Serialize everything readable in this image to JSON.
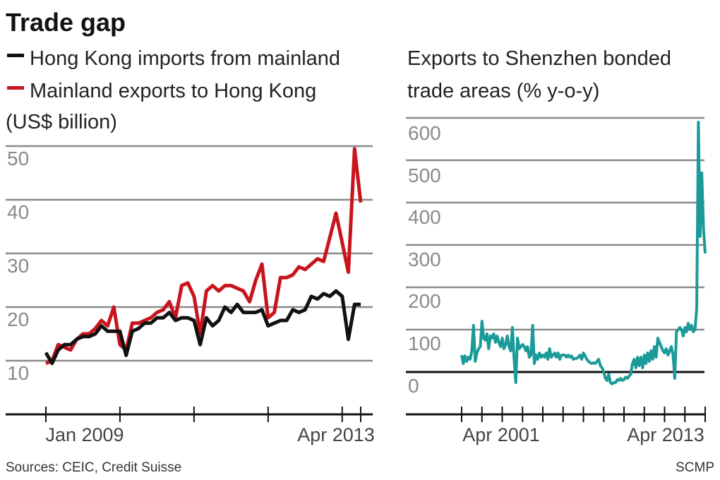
{
  "title": "Trade gap",
  "footer": {
    "source": "Sources: CEIC, Credit Suisse",
    "credit": "SCMP"
  },
  "colors": {
    "hk_imports": "#111111",
    "mainland_exports": "#c8141c",
    "shenzhen": "#1a9a98",
    "grid": "#8a8a8a"
  },
  "chart_data": [
    {
      "type": "line",
      "title": "",
      "legend": [
        "Hong Kong imports from mainland",
        "Mainland exports to Hong Kong"
      ],
      "unit_label": "(US$ billion)",
      "legend_placement": "top-left",
      "x_start": "2009-01",
      "x_end": "2013-04",
      "x_frequency": "monthly",
      "x_tick_labels": [
        "Jan 2009",
        "Apr 2013"
      ],
      "y_ticks": [
        "10",
        "20",
        "30",
        "40",
        "50"
      ],
      "ylim": [
        0,
        50
      ],
      "grid": true,
      "series": [
        {
          "name": "Hong Kong imports from mainland",
          "color": "#111111",
          "values": [
            11.5,
            9.5,
            12,
            13,
            13,
            14,
            14.5,
            14.5,
            15,
            16.5,
            15.5,
            15.5,
            15.5,
            11,
            15.5,
            16,
            17,
            17,
            18,
            18,
            19,
            17.5,
            18,
            18,
            17.5,
            13,
            18,
            16.5,
            17.5,
            20,
            19,
            20.5,
            19,
            19,
            19,
            19.5,
            16.5,
            17,
            17.5,
            17.5,
            19.5,
            19,
            19.5,
            22,
            21.5,
            22.5,
            22,
            23,
            22,
            14,
            20.5,
            20.5
          ]
        },
        {
          "name": "Mainland exports to Hong Kong",
          "color": "#c8141c",
          "values": [
            9.5,
            10,
            13,
            12.5,
            12,
            14,
            15,
            15,
            16,
            17.5,
            16.5,
            20,
            13,
            12,
            17,
            17,
            17.5,
            18,
            19,
            19.5,
            21,
            18,
            24,
            24.5,
            22,
            15,
            23,
            24,
            23,
            24,
            24,
            23.5,
            23,
            21,
            25,
            28,
            18,
            19,
            25.5,
            25.5,
            26,
            27.5,
            27,
            28,
            29,
            28.5,
            33,
            37.5,
            32,
            26.5,
            49.5,
            39.5
          ]
        }
      ]
    },
    {
      "type": "line",
      "title": "Exports to Shenzhen bonded trade areas (% y-o-y)",
      "title_lines": [
        "Exports to Shenzhen bonded",
        "trade areas (% y-o-y)"
      ],
      "x_start": "2001-04",
      "x_end": "2013-04",
      "x_frequency": "monthly",
      "x_tick_labels": [
        "Apr 2001",
        "Apr 2013"
      ],
      "y_ticks": [
        "0",
        "100",
        "200",
        "300",
        "400",
        "500",
        "600"
      ],
      "ylim": [
        -50,
        600
      ],
      "grid": true,
      "series": [
        {
          "color": "#1a9a98",
          "values": [
            40,
            20,
            38,
            25,
            35,
            30,
            50,
            110,
            25,
            45,
            55,
            60,
            120,
            80,
            75,
            90,
            55,
            85,
            80,
            90,
            70,
            85,
            70,
            60,
            80,
            55,
            65,
            85,
            60,
            50,
            105,
            30,
            -25,
            80,
            55,
            60,
            65,
            60,
            50,
            60,
            35,
            40,
            110,
            20,
            40,
            30,
            45,
            35,
            40,
            35,
            45,
            30,
            55,
            35,
            40,
            45,
            35,
            45,
            30,
            40,
            40,
            40,
            35,
            40,
            35,
            38,
            30,
            32,
            32,
            35,
            40,
            30,
            45,
            38,
            30,
            25,
            22,
            20,
            22,
            20,
            25,
            30,
            15,
            10,
            0,
            -15,
            -20,
            -5,
            -25,
            -28,
            -25,
            -25,
            -18,
            -20,
            -15,
            -20,
            -18,
            -12,
            -15,
            -10,
            -5,
            20,
            30,
            10,
            35,
            15,
            35,
            10,
            40,
            20,
            45,
            25,
            50,
            30,
            60,
            35,
            80,
            70,
            60,
            50,
            45,
            55,
            40,
            50,
            60,
            40,
            -15,
            95,
            100,
            105,
            100,
            85,
            105,
            95,
            115,
            100,
            110,
            95,
            100,
            150,
            590,
            320,
            470,
            340,
            280
          ]
        }
      ]
    }
  ]
}
